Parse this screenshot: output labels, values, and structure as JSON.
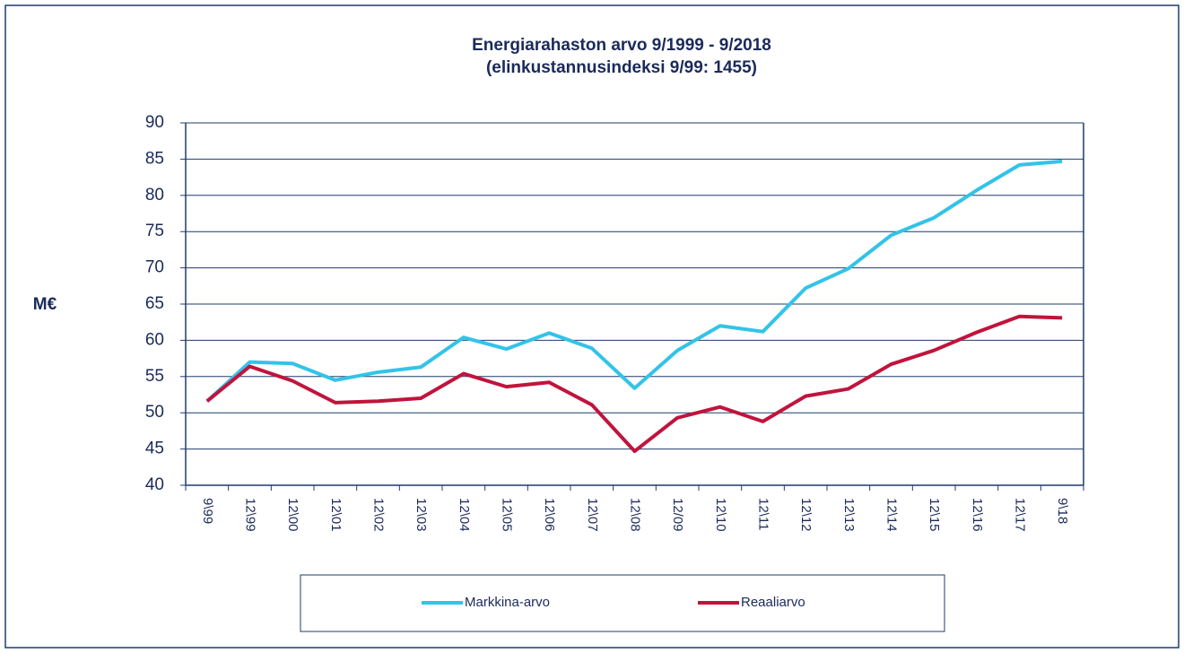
{
  "chart_data": {
    "type": "line",
    "title": "Energiarahaston arvo 9/1999 - 9/2018",
    "subtitle": "(elinkustannusindeksi 9/99: 1455)",
    "y_label": "M€",
    "categories": [
      "9\\99",
      "12\\99",
      "12\\00",
      "12\\01",
      "12\\02",
      "12\\03",
      "12\\04",
      "12\\05",
      "12\\06",
      "12\\07",
      "12\\08",
      "12/09",
      "12\\10",
      "12\\11",
      "12\\12",
      "12\\13",
      "12\\14",
      "12\\15",
      "12\\16",
      "12\\17",
      "9\\18"
    ],
    "series": [
      {
        "name": "Markkina-arvo",
        "color": "#33c3e8",
        "values": [
          51.6,
          57.0,
          56.8,
          54.5,
          55.6,
          56.3,
          60.4,
          58.8,
          61.0,
          58.9,
          53.4,
          58.6,
          62.0,
          61.2,
          67.2,
          69.9,
          74.5,
          76.9,
          80.7,
          84.2,
          84.7
        ]
      },
      {
        "name": "Reaaliarvo",
        "color": "#c0143c",
        "values": [
          51.6,
          56.4,
          54.4,
          51.4,
          51.6,
          52.0,
          55.4,
          53.6,
          54.2,
          51.1,
          44.7,
          49.3,
          50.8,
          48.8,
          52.3,
          53.3,
          56.7,
          58.6,
          61.1,
          63.3,
          63.1
        ]
      }
    ],
    "ylim": [
      40,
      90
    ],
    "yticks": [
      40,
      45,
      50,
      55,
      60,
      65,
      70,
      75,
      80,
      85,
      90
    ],
    "grid": true,
    "legend": "bottom"
  }
}
